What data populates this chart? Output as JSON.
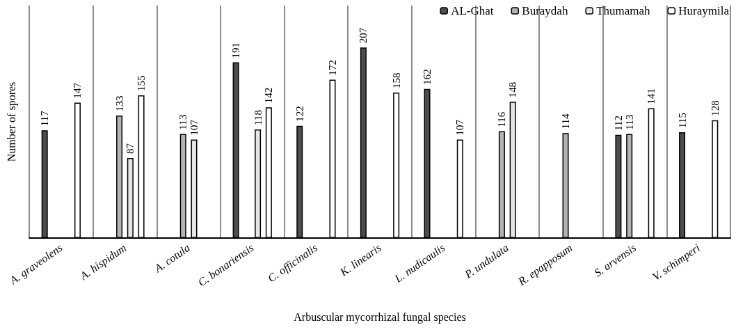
{
  "chart_data": {
    "type": "bar",
    "xlabel": "Arbuscular mycorrhizal fungal species",
    "ylabel": "Number of spores",
    "categories": [
      "A. graveolens",
      "A. hispidum",
      "A. cotula",
      "C. bonariensis",
      "C. officinalis",
      "K. linearis",
      "L. nudicaulis",
      "P. undulata",
      "R. epapposum",
      "S. arvensis",
      "V. schimperi"
    ],
    "series": [
      {
        "name": "AL-Ghat",
        "color": "#4d4d4d",
        "values": [
          117,
          null,
          null,
          191,
          122,
          207,
          162,
          null,
          null,
          112,
          115
        ]
      },
      {
        "name": "Buraydah",
        "color": "#b3b3b3",
        "values": [
          null,
          133,
          113,
          null,
          null,
          null,
          null,
          116,
          114,
          113,
          null
        ]
      },
      {
        "name": "Thumamah",
        "color": "#e6e6e6",
        "values": [
          null,
          87,
          107,
          118,
          null,
          null,
          null,
          148,
          null,
          null,
          null
        ]
      },
      {
        "name": "Huraymila",
        "color": "#ffffff",
        "values": [
          147,
          155,
          null,
          142,
          172,
          158,
          107,
          null,
          null,
          141,
          128
        ]
      }
    ],
    "data_labels": true,
    "grid": "x",
    "legend": "top right"
  }
}
